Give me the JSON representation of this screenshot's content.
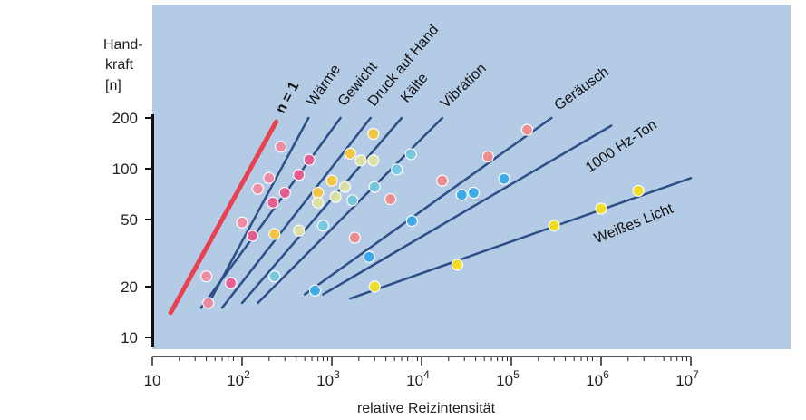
{
  "chart_data": {
    "type": "scatter",
    "xlabel": "relative Reizintensität",
    "ylabel_lines": [
      "Hand-",
      "kraft",
      "[n]"
    ],
    "x_scale": "log",
    "y_scale": "log",
    "xlim": [
      10,
      10000000
    ],
    "ylim": [
      10,
      200
    ],
    "x_ticks": [
      {
        "value": 10,
        "label": "10",
        "sup": ""
      },
      {
        "value": 100,
        "label": "10",
        "sup": "2"
      },
      {
        "value": 1000,
        "label": "10",
        "sup": "3"
      },
      {
        "value": 10000,
        "label": "10",
        "sup": "4"
      },
      {
        "value": 100000,
        "label": "10",
        "sup": "5"
      },
      {
        "value": 1000000,
        "label": "10",
        "sup": "6"
      },
      {
        "value": 10000000,
        "label": "10",
        "sup": "7"
      }
    ],
    "y_ticks": [
      {
        "value": 10,
        "label": "10"
      },
      {
        "value": 20,
        "label": "20"
      },
      {
        "value": 50,
        "label": "50"
      },
      {
        "value": 100,
        "label": "100"
      },
      {
        "value": 200,
        "label": "200"
      }
    ],
    "grid": false,
    "colors": {
      "plot_bg": "#b4cbe6",
      "line": "#2b4f86",
      "reference": "#e8414f"
    },
    "reference_line": {
      "name": "n = 1",
      "x": [
        16,
        240
      ],
      "y": [
        14,
        190
      ]
    },
    "series": [
      {
        "name": "Wärme",
        "line": {
          "x": [
            40,
            550
          ],
          "y": [
            15,
            200
          ]
        },
        "color": "#f08aa0",
        "points": [
          [
            40,
            23
          ],
          [
            42,
            16
          ],
          [
            100,
            48
          ],
          [
            150,
            76
          ],
          [
            200,
            88
          ],
          [
            270,
            135
          ]
        ]
      },
      {
        "name": "Gewicht",
        "line": {
          "x": [
            35,
            1250
          ],
          "y": [
            15,
            200
          ]
        },
        "color": "#e85a8e",
        "points": [
          [
            75,
            21
          ],
          [
            130,
            40
          ],
          [
            220,
            63
          ],
          [
            300,
            72
          ],
          [
            430,
            92
          ],
          [
            560,
            113
          ]
        ]
      },
      {
        "name": "Druck auf Hand",
        "line": {
          "x": [
            60,
            2700
          ],
          "y": [
            15,
            200
          ]
        },
        "color": "#f6c63a",
        "points": [
          [
            230,
            41
          ],
          [
            700,
            72
          ],
          [
            1000,
            85
          ],
          [
            1600,
            123
          ],
          [
            2900,
            161
          ]
        ]
      },
      {
        "name": "Kälte",
        "line": {
          "x": [
            100,
            6000
          ],
          "y": [
            16,
            200
          ]
        },
        "color": "#dde3a0",
        "points": [
          [
            430,
            43
          ],
          [
            700,
            63
          ],
          [
            1100,
            68
          ],
          [
            1400,
            78
          ],
          [
            2100,
            112
          ],
          [
            2900,
            112
          ]
        ]
      },
      {
        "name": "Vibration",
        "line": {
          "x": [
            150,
            17000
          ],
          "y": [
            16,
            200
          ]
        },
        "color": "#75c8e0",
        "points": [
          [
            230,
            23
          ],
          [
            800,
            46
          ],
          [
            1700,
            65
          ],
          [
            3000,
            78
          ],
          [
            5300,
            99
          ],
          [
            7600,
            122
          ]
        ]
      },
      {
        "name": "Geräusch",
        "line": {
          "x": [
            500,
            280000
          ],
          "y": [
            18,
            200
          ]
        },
        "color": "#f08a8a",
        "points": [
          [
            1800,
            39
          ],
          [
            4500,
            66
          ],
          [
            17000,
            85
          ],
          [
            55000,
            118
          ],
          [
            150000,
            170
          ]
        ]
      },
      {
        "name": "1000 Hz-Ton",
        "line": {
          "x": [
            800,
            1300000
          ],
          "y": [
            18,
            180
          ]
        },
        "color": "#3aa8e8",
        "points": [
          [
            650,
            19
          ],
          [
            2600,
            30
          ],
          [
            7800,
            49
          ],
          [
            28000,
            70
          ],
          [
            38000,
            72
          ],
          [
            83000,
            87
          ]
        ]
      },
      {
        "name": "Weißes Licht",
        "line": {
          "x": [
            1600,
            10000000
          ],
          "y": [
            17,
            88
          ]
        },
        "color": "#f4e020",
        "points": [
          [
            3000,
            20
          ],
          [
            25000,
            27
          ],
          [
            300000,
            46
          ],
          [
            1000000,
            58
          ],
          [
            2600000,
            74
          ]
        ]
      }
    ]
  }
}
